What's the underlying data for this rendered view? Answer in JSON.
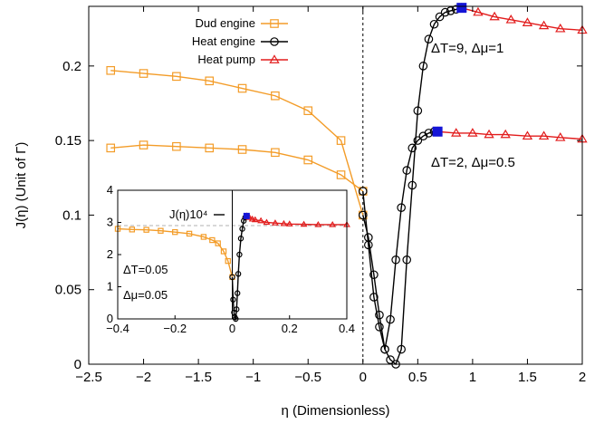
{
  "chart_data": {
    "type": "line",
    "xlabel": "η (Dimensionless)",
    "ylabel": "J(η) (Unit of Γ)",
    "xlim": [
      -2.5,
      2
    ],
    "ylim": [
      0,
      0.24
    ],
    "xticks": [
      "−2.5",
      "−2",
      "−1.5",
      "−1",
      "−0.5",
      "0",
      "0.5",
      "1",
      "1.5",
      "2"
    ],
    "yticks": [
      "0",
      "0.05",
      "0.1",
      "0.15",
      "0.2"
    ],
    "grid": false,
    "legend_position": "top-left",
    "legend": [
      {
        "name": "Dud engine",
        "color": "#f39c28",
        "marker": "square"
      },
      {
        "name": "Heat engine",
        "color": "#000000",
        "marker": "circle"
      },
      {
        "name": "Heat pump",
        "color": "#e21c1c",
        "marker": "triangle"
      }
    ],
    "annotations": {
      "upper": "ΔT=9, Δμ=1",
      "lower": "ΔT=2, Δμ=0.5"
    },
    "series": [
      {
        "legend_index": 0,
        "group": "upper",
        "x": [
          -2.3,
          -2.0,
          -1.7,
          -1.4,
          -1.1,
          -0.8,
          -0.5,
          -0.2,
          0.0
        ],
        "y": [
          0.197,
          0.195,
          0.193,
          0.19,
          0.185,
          0.18,
          0.17,
          0.15,
          0.1
        ]
      },
      {
        "legend_index": 1,
        "group": "upper",
        "x": [
          0.0,
          0.05,
          0.1,
          0.15,
          0.2,
          0.25,
          0.3,
          0.35,
          0.4,
          0.45,
          0.5,
          0.55,
          0.6,
          0.65,
          0.7,
          0.75,
          0.8,
          0.85,
          0.9
        ],
        "y": [
          0.1,
          0.085,
          0.06,
          0.033,
          0.01,
          0.003,
          0.0,
          0.01,
          0.07,
          0.12,
          0.17,
          0.2,
          0.218,
          0.228,
          0.233,
          0.236,
          0.237,
          0.238,
          0.239
        ]
      },
      {
        "legend_index": 2,
        "group": "upper",
        "x": [
          0.9,
          1.05,
          1.2,
          1.35,
          1.5,
          1.65,
          1.8,
          2.0
        ],
        "y": [
          0.239,
          0.236,
          0.233,
          0.231,
          0.229,
          0.227,
          0.225,
          0.224
        ]
      },
      {
        "legend_index": 0,
        "group": "lower",
        "x": [
          -2.3,
          -2.0,
          -1.7,
          -1.4,
          -1.1,
          -0.8,
          -0.5,
          -0.2,
          0.0
        ],
        "y": [
          0.145,
          0.147,
          0.146,
          0.145,
          0.144,
          0.142,
          0.137,
          0.127,
          0.116
        ]
      },
      {
        "legend_index": 1,
        "group": "lower",
        "x": [
          0.0,
          0.05,
          0.1,
          0.15,
          0.2,
          0.25,
          0.3,
          0.35,
          0.4,
          0.45,
          0.5,
          0.55,
          0.6,
          0.65,
          0.68
        ],
        "y": [
          0.116,
          0.08,
          0.045,
          0.025,
          0.01,
          0.03,
          0.07,
          0.105,
          0.13,
          0.145,
          0.15,
          0.153,
          0.155,
          0.156,
          0.156
        ]
      },
      {
        "legend_index": 2,
        "group": "lower",
        "x": [
          0.68,
          0.85,
          1.0,
          1.15,
          1.3,
          1.5,
          1.65,
          1.8,
          2.0
        ],
        "y": [
          0.156,
          0.155,
          0.155,
          0.154,
          0.154,
          0.153,
          0.153,
          0.152,
          0.151
        ]
      }
    ],
    "marker_points": [
      {
        "group": "upper",
        "x": 0.9,
        "y": 0.239,
        "color": "#1515d6"
      },
      {
        "group": "lower",
        "x": 0.68,
        "y": 0.156,
        "color": "#1515d6"
      }
    ],
    "inset": {
      "xlim": [
        -0.4,
        0.4
      ],
      "ylim": [
        0,
        4
      ],
      "xticks": [
        "−0.4",
        "−0.2",
        "0",
        "0.2",
        "0.4"
      ],
      "yticks": [
        "0",
        "1",
        "2",
        "3",
        "4"
      ],
      "reference_line_y": 2.9,
      "texts": [
        "J(η)10⁴",
        "ΔT=0.05",
        "Δμ=0.05"
      ],
      "series": [
        {
          "legend_index": 0,
          "x": [
            -0.4,
            -0.35,
            -0.3,
            -0.25,
            -0.2,
            -0.15,
            -0.1,
            -0.07,
            -0.05,
            -0.03,
            -0.015,
            0.0
          ],
          "y": [
            2.8,
            2.78,
            2.77,
            2.74,
            2.7,
            2.65,
            2.55,
            2.45,
            2.35,
            2.1,
            1.8,
            1.3
          ]
        },
        {
          "legend_index": 1,
          "x": [
            0.0,
            0.003,
            0.006,
            0.009,
            0.012,
            0.015,
            0.018,
            0.021,
            0.025,
            0.03,
            0.035,
            0.04,
            0.045,
            0.05
          ],
          "y": [
            1.3,
            0.6,
            0.2,
            0.05,
            0.0,
            0.3,
            0.8,
            1.4,
            2.0,
            2.5,
            2.8,
            3.05,
            3.15,
            3.2
          ]
        },
        {
          "legend_index": 2,
          "x": [
            0.05,
            0.06,
            0.07,
            0.08,
            0.1,
            0.12,
            0.15,
            0.18,
            0.2,
            0.25,
            0.3,
            0.35,
            0.4
          ],
          "y": [
            3.2,
            3.15,
            3.1,
            3.08,
            3.05,
            3.0,
            2.98,
            2.96,
            2.95,
            2.94,
            2.93,
            2.93,
            2.93
          ]
        }
      ],
      "marker_point": {
        "x": 0.05,
        "y": 3.2,
        "color": "#1515d6"
      }
    }
  }
}
